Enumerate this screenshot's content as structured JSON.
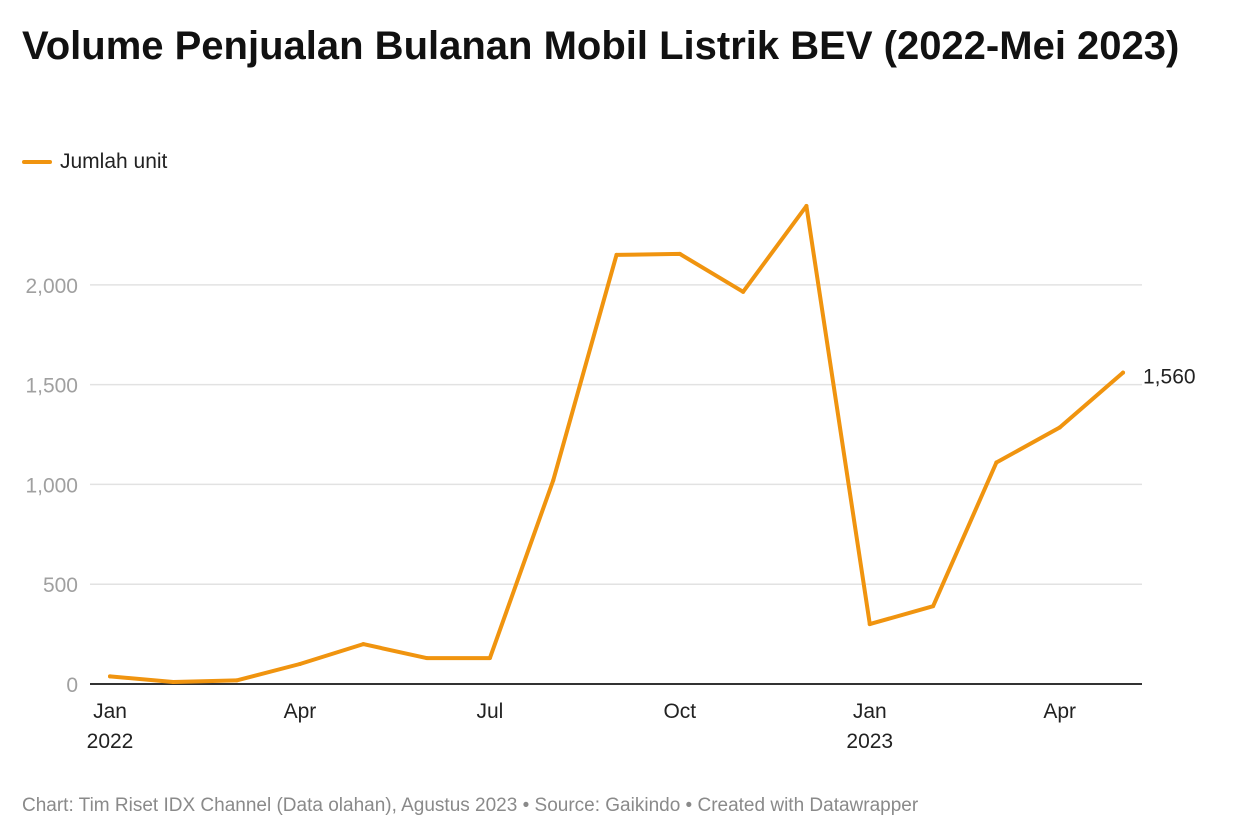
{
  "header": {
    "title": "Volume Penjualan Bulanan Mobil Listrik BEV (2022-Mei 2023)"
  },
  "colors": {
    "series": "#f0940f",
    "grid": "#e2e2e2",
    "axis": "#333333",
    "tick_label": "#a0a0a0",
    "text": "#222222"
  },
  "chart_data": {
    "type": "line",
    "x": [
      "2022-01",
      "2022-02",
      "2022-03",
      "2022-04",
      "2022-05",
      "2022-06",
      "2022-07",
      "2022-08",
      "2022-09",
      "2022-10",
      "2022-11",
      "2022-12",
      "2023-01",
      "2023-02",
      "2023-03",
      "2023-04",
      "2023-05"
    ],
    "series": [
      {
        "name": "Jumlah unit",
        "values": [
          38,
          10,
          18,
          100,
          200,
          130,
          130,
          1020,
          2150,
          2155,
          1965,
          2395,
          300,
          390,
          1110,
          1285,
          1560
        ]
      }
    ],
    "ylim": [
      0,
      2400
    ],
    "y_ticks": [
      {
        "value": 0,
        "label": "0"
      },
      {
        "value": 500,
        "label": "500"
      },
      {
        "value": 1000,
        "label": "1,000"
      },
      {
        "value": 1500,
        "label": "1,500"
      },
      {
        "value": 2000,
        "label": "2,000"
      }
    ],
    "x_ticks": [
      {
        "month": "2022-01",
        "label": "Jan",
        "year": "2022"
      },
      {
        "month": "2022-04",
        "label": "Apr",
        "year": ""
      },
      {
        "month": "2022-07",
        "label": "Jul",
        "year": ""
      },
      {
        "month": "2022-10",
        "label": "Oct",
        "year": ""
      },
      {
        "month": "2023-01",
        "label": "Jan",
        "year": "2023"
      },
      {
        "month": "2023-04",
        "label": "Apr",
        "year": ""
      }
    ],
    "end_label": {
      "month": "2023-05",
      "value": 1560,
      "text": "1,560"
    },
    "grid": true,
    "legend_position": "top-left",
    "title": "Volume Penjualan Bulanan Mobil Listrik BEV (2022-Mei 2023)",
    "xlabel": "",
    "ylabel": ""
  },
  "footer": {
    "credit": "Chart: Tim Riset IDX Channel (Data olahan), Agustus 2023 • Source: Gaikindo • Created with Datawrapper"
  }
}
